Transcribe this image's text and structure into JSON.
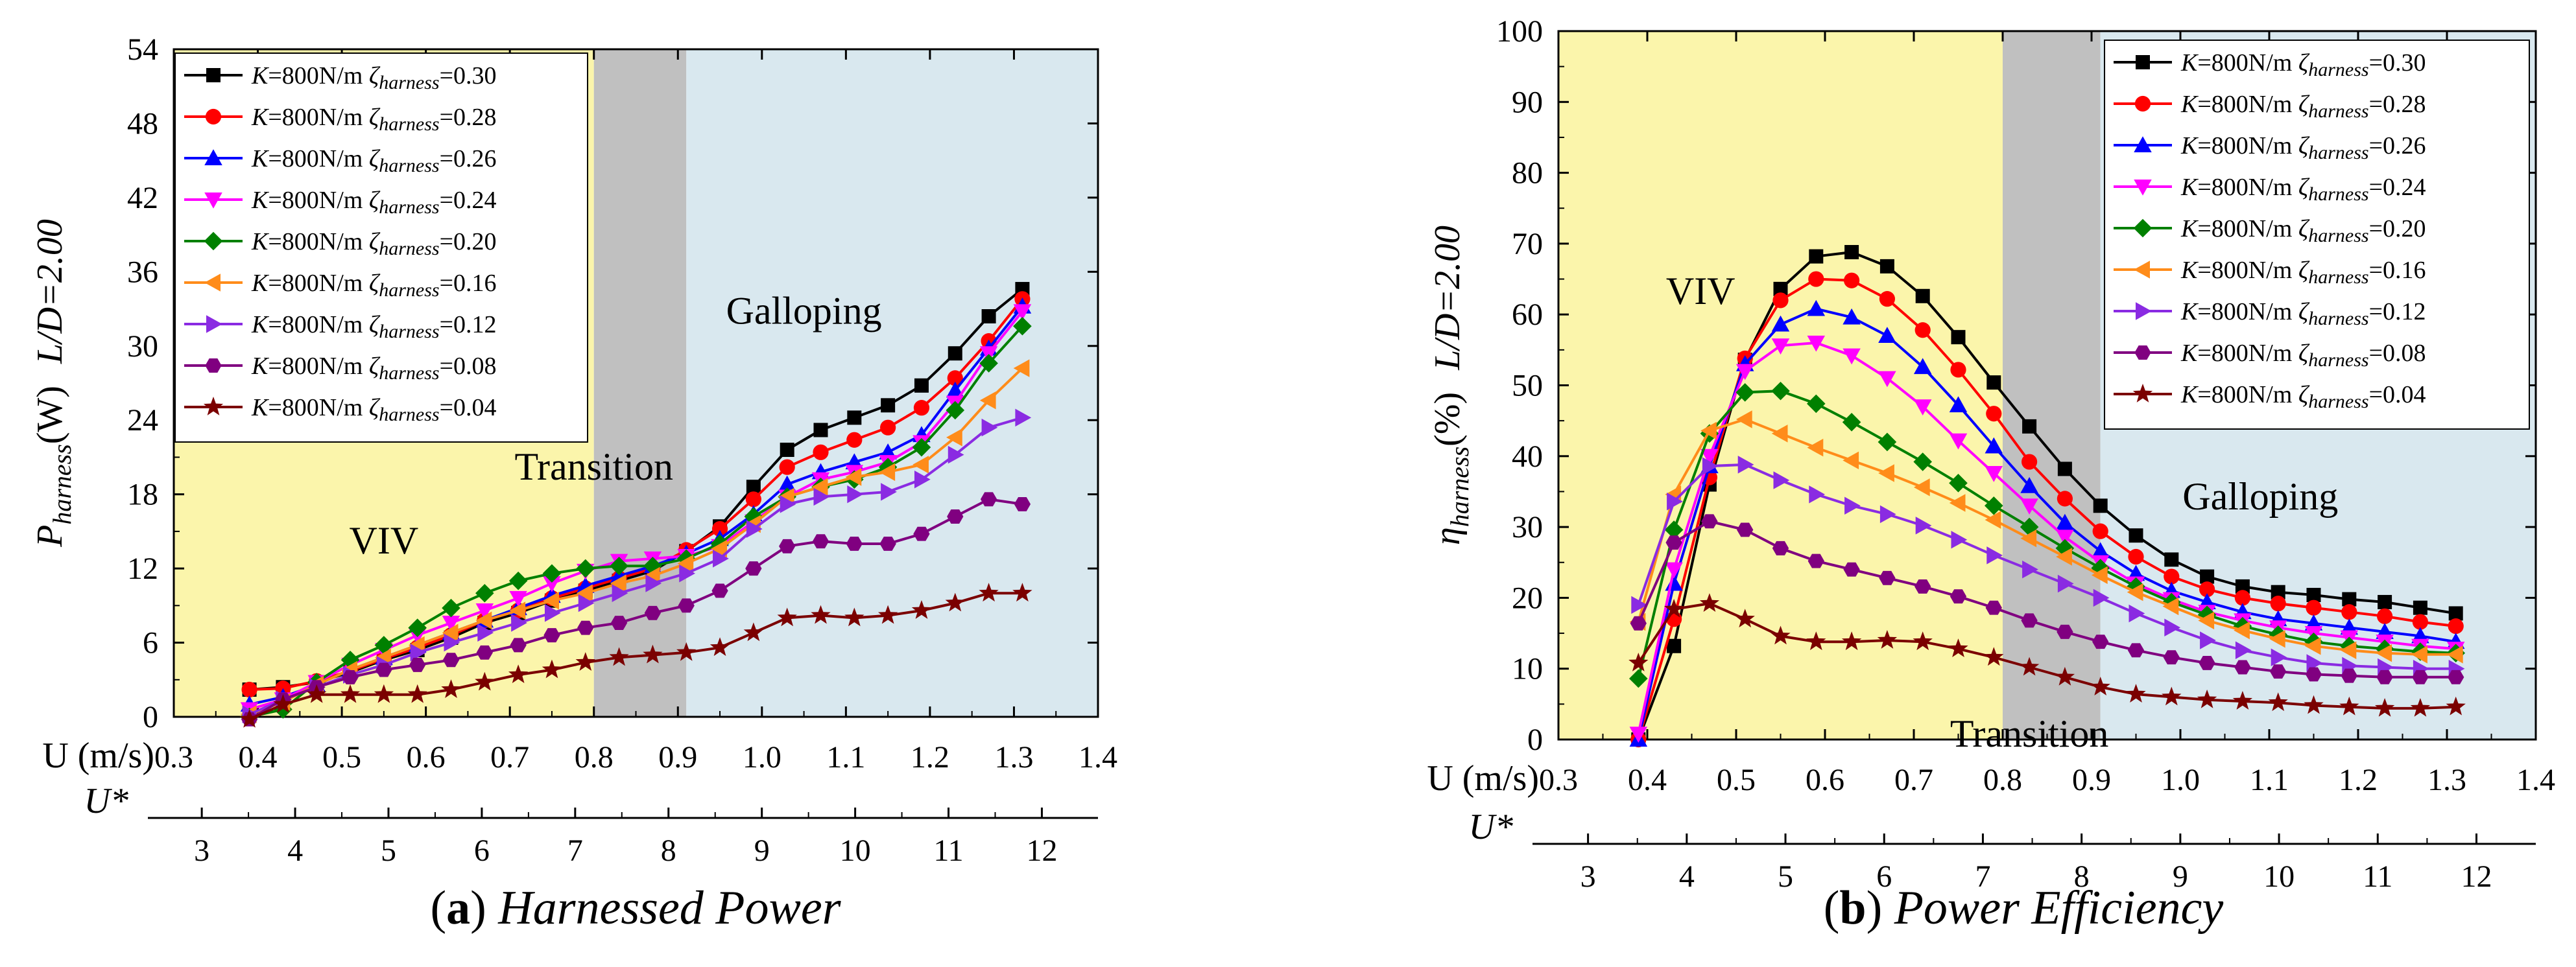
{
  "chart_data": [
    {
      "type": "line",
      "id": "a",
      "caption": {
        "letter": "(a)",
        "title": "Harnessed Power"
      },
      "ylabel": "P_harness(W)",
      "ylabel_main": "P",
      "ylabel_sub": "harness",
      "ylabel_unit": "(W)",
      "ylabel_right": "L/D=2.00",
      "xlabel": "U (m/s)",
      "x2label": "U*",
      "xlim": [
        0.3,
        1.4
      ],
      "ylim": [
        0,
        54
      ],
      "xticks": [
        0.3,
        0.4,
        0.5,
        0.6,
        0.7,
        0.8,
        0.9,
        1.0,
        1.1,
        1.2,
        1.3,
        1.4
      ],
      "xtick_labels": [
        "0.3",
        "0.4",
        "0.5",
        "0.6",
        "0.7",
        "0.8",
        "0.9",
        "1.0",
        "1.1",
        "1.2",
        "1.3",
        "1.4"
      ],
      "yticks": [
        0,
        6,
        12,
        18,
        24,
        30,
        36,
        42,
        48,
        54
      ],
      "ytick_labels": [
        "0",
        "6",
        "12",
        "18",
        "24",
        "30",
        "36",
        "42",
        "48",
        "54"
      ],
      "x2ticks": [
        3,
        4,
        5,
        6,
        7,
        8,
        9,
        10,
        11,
        12
      ],
      "x2tick_labels": [
        "3",
        "4",
        "5",
        "6",
        "7",
        "8",
        "9",
        "10",
        "11",
        "12"
      ],
      "x2_scale": 0.1111,
      "regions": [
        {
          "name": "VIV",
          "x0": 0.3,
          "x1": 0.8,
          "color": "#fbf5ab"
        },
        {
          "name": "Transition",
          "x0": 0.8,
          "x1": 0.91,
          "color": "#c0c0c0"
        },
        {
          "name": "Galloping",
          "x0": 0.91,
          "x1": 1.4,
          "color": "#d9e8ef"
        }
      ],
      "region_labels": [
        {
          "text": "VIV",
          "x": 0.55,
          "y": 13.2
        },
        {
          "text": "Transition",
          "x": 0.8,
          "y": 19.2
        },
        {
          "text": "Galloping",
          "x": 1.05,
          "y": 31.8
        }
      ],
      "legend_position": "top-left",
      "x": [
        0.39,
        0.43,
        0.47,
        0.51,
        0.55,
        0.59,
        0.63,
        0.67,
        0.71,
        0.75,
        0.79,
        0.83,
        0.87,
        0.91,
        0.95,
        0.99,
        1.03,
        1.07,
        1.11,
        1.15,
        1.19,
        1.23,
        1.27,
        1.31
      ],
      "series": [
        {
          "name": "K=800N/m  ζharness=0.30",
          "k_text": "K",
          "rest": "=800N/m  ",
          "zeta_sub": "harness",
          "value_text": "=0.30",
          "color": "#000000",
          "marker": "square",
          "values": [
            2.2,
            2.4,
            2.8,
            3.6,
            4.6,
            5.4,
            6.4,
            7.6,
            8.4,
            9.4,
            10.2,
            11.0,
            11.8,
            13.4,
            15.4,
            18.6,
            21.6,
            23.2,
            24.2,
            25.2,
            26.8,
            29.4,
            32.4,
            34.6
          ]
        },
        {
          "name": "K=800N/m  ζharness=0.28",
          "k_text": "K",
          "rest": "=800N/m  ",
          "zeta_sub": "harness",
          "value_text": "=0.28",
          "color": "#ff0000",
          "marker": "circle",
          "values": [
            2.2,
            2.3,
            2.9,
            3.7,
            4.7,
            5.6,
            6.6,
            7.8,
            8.6,
            9.6,
            10.4,
            11.2,
            12.0,
            13.5,
            15.2,
            17.6,
            20.2,
            21.4,
            22.4,
            23.4,
            25.0,
            27.4,
            30.4,
            33.8
          ]
        },
        {
          "name": "K=800N/m  ζharness=0.26",
          "k_text": "K",
          "rest": "=800N/m  ",
          "zeta_sub": "harness",
          "value_text": "=0.26",
          "color": "#0000ff",
          "marker": "triangle-up",
          "values": [
            1.0,
            1.6,
            2.6,
            3.8,
            4.8,
            5.8,
            6.8,
            7.8,
            8.8,
            9.8,
            10.6,
            11.4,
            12.2,
            13.2,
            14.4,
            16.4,
            18.8,
            19.8,
            20.6,
            21.4,
            22.8,
            26.4,
            29.8,
            33.2
          ]
        },
        {
          "name": "K=800N/m  ζharness=0.24",
          "k_text": "K",
          "rest": "=800N/m  ",
          "zeta_sub": "harness",
          "value_text": "=0.24",
          "color": "#ff00ff",
          "marker": "triangle-down",
          "values": [
            0.6,
            1.4,
            2.8,
            4.2,
            5.4,
            6.6,
            7.6,
            8.6,
            9.6,
            10.8,
            11.8,
            12.6,
            12.8,
            13.0,
            13.8,
            15.8,
            17.8,
            19.2,
            19.8,
            20.6,
            22.2,
            25.4,
            29.4,
            32.8
          ]
        },
        {
          "name": "K=800N/m  ζharness=0.20",
          "k_text": "K",
          "rest": "=800N/m  ",
          "zeta_sub": "harness",
          "value_text": "=0.20",
          "color": "#008000",
          "marker": "diamond",
          "values": [
            0.0,
            0.6,
            2.8,
            4.6,
            5.8,
            7.2,
            8.8,
            10.0,
            11.0,
            11.6,
            12.0,
            12.2,
            12.2,
            12.8,
            14.0,
            16.2,
            17.8,
            18.6,
            19.2,
            20.2,
            21.8,
            24.8,
            28.6,
            31.6
          ]
        },
        {
          "name": "K=800N/m  ζharness=0.16",
          "k_text": "K",
          "rest": "=800N/m  ",
          "zeta_sub": "harness",
          "value_text": "=0.16",
          "color": "#ff8c1a",
          "marker": "triangle-left",
          "values": [
            0.2,
            1.2,
            2.6,
            3.8,
            4.8,
            5.8,
            6.8,
            7.8,
            8.6,
            9.4,
            10.0,
            10.8,
            11.4,
            12.4,
            13.6,
            15.6,
            17.8,
            18.6,
            19.4,
            19.8,
            20.4,
            22.6,
            25.6,
            28.2
          ]
        },
        {
          "name": "K=800N/m  ζharness=0.12",
          "k_text": "K",
          "rest": "=800N/m  ",
          "zeta_sub": "harness",
          "value_text": "=0.12",
          "color": "#8a2be2",
          "marker": "triangle-right",
          "values": [
            0.2,
            1.4,
            2.4,
            3.4,
            4.2,
            5.2,
            6.0,
            6.8,
            7.6,
            8.4,
            9.2,
            10.0,
            10.8,
            11.6,
            12.8,
            15.2,
            17.2,
            17.8,
            18.0,
            18.2,
            19.2,
            21.2,
            23.4,
            24.2
          ]
        },
        {
          "name": "K=800N/m  ζharness=0.08",
          "k_text": "K",
          "rest": "=800N/m  ",
          "zeta_sub": "harness",
          "value_text": "=0.08",
          "color": "#800080",
          "marker": "hexagon",
          "values": [
            -0.2,
            1.4,
            2.4,
            3.2,
            3.8,
            4.2,
            4.6,
            5.2,
            5.8,
            6.6,
            7.2,
            7.6,
            8.4,
            9.0,
            10.2,
            12.0,
            13.8,
            14.2,
            14.0,
            14.0,
            14.8,
            16.2,
            17.6,
            17.2
          ]
        },
        {
          "name": "K=800N/m  ζharness=0.04",
          "k_text": "K",
          "rest": "=800N/m  ",
          "zeta_sub": "harness",
          "value_text": "=0.04",
          "color": "#7b0000",
          "marker": "star",
          "values": [
            -0.2,
            1.0,
            1.8,
            1.8,
            1.8,
            1.8,
            2.2,
            2.8,
            3.4,
            3.8,
            4.4,
            4.8,
            5.0,
            5.2,
            5.6,
            6.8,
            8.0,
            8.2,
            8.0,
            8.2,
            8.6,
            9.2,
            10.0,
            10.0
          ]
        }
      ]
    },
    {
      "type": "line",
      "id": "b",
      "caption": {
        "letter": "(b)",
        "title": "Power Efficiency"
      },
      "ylabel": "η_harness(%)",
      "ylabel_main": "η",
      "ylabel_sub": "harness",
      "ylabel_unit": "(%)",
      "ylabel_right": "L/D=2.00",
      "xlabel": "U (m/s)",
      "x2label": "U*",
      "xlim": [
        0.3,
        1.4
      ],
      "ylim": [
        0,
        100
      ],
      "xticks": [
        0.3,
        0.4,
        0.5,
        0.6,
        0.7,
        0.8,
        0.9,
        1.0,
        1.1,
        1.2,
        1.3,
        1.4
      ],
      "xtick_labels": [
        "0.3",
        "0.4",
        "0.5",
        "0.6",
        "0.7",
        "0.8",
        "0.9",
        "1.0",
        "1.1",
        "1.2",
        "1.3",
        "1.4"
      ],
      "yticks": [
        0,
        10,
        20,
        30,
        40,
        50,
        60,
        70,
        80,
        90,
        100
      ],
      "ytick_labels": [
        "0",
        "10",
        "20",
        "30",
        "40",
        "50",
        "60",
        "70",
        "80",
        "90",
        "100"
      ],
      "x2ticks": [
        3,
        4,
        5,
        6,
        7,
        8,
        9,
        10,
        11,
        12
      ],
      "x2tick_labels": [
        "3",
        "4",
        "5",
        "6",
        "7",
        "8",
        "9",
        "10",
        "11",
        "12"
      ],
      "x2_scale": 0.1111,
      "regions": [
        {
          "name": "VIV",
          "x0": 0.3,
          "x1": 0.8,
          "color": "#fbf5ab"
        },
        {
          "name": "Transition",
          "x0": 0.8,
          "x1": 0.91,
          "color": "#c0c0c0"
        },
        {
          "name": "Galloping",
          "x0": 0.91,
          "x1": 1.4,
          "color": "#d9e8ef"
        }
      ],
      "region_labels": [
        {
          "text": "VIV",
          "x": 0.46,
          "y": 61.5
        },
        {
          "text": "Transition",
          "x": 0.83,
          "y": -1.0
        },
        {
          "text": "Galloping",
          "x": 1.09,
          "y": 32.5
        }
      ],
      "legend_position": "top-right",
      "x": [
        0.39,
        0.43,
        0.47,
        0.51,
        0.55,
        0.59,
        0.63,
        0.67,
        0.71,
        0.75,
        0.79,
        0.83,
        0.87,
        0.91,
        0.95,
        0.99,
        1.03,
        1.07,
        1.11,
        1.15,
        1.19,
        1.23,
        1.27,
        1.31
      ],
      "series": [
        {
          "name": "K=800N/m  ζharness=0.30",
          "k_text": "K",
          "rest": "=800N/m  ",
          "zeta_sub": "harness",
          "value_text": "=0.30",
          "color": "#000000",
          "marker": "square",
          "values": [
            0.0,
            13.2,
            36.0,
            53.6,
            63.6,
            68.2,
            68.8,
            66.8,
            62.6,
            56.8,
            50.4,
            44.2,
            38.2,
            33.0,
            28.8,
            25.4,
            23.0,
            21.6,
            20.8,
            20.4,
            19.8,
            19.4,
            18.6,
            17.8
          ]
        },
        {
          "name": "K=800N/m  ζharness=0.28",
          "k_text": "K",
          "rest": "=800N/m  ",
          "zeta_sub": "harness",
          "value_text": "=0.28",
          "color": "#ff0000",
          "marker": "circle",
          "values": [
            0.0,
            17.0,
            37.0,
            53.8,
            62.0,
            65.0,
            64.8,
            62.2,
            57.8,
            52.2,
            46.0,
            39.2,
            34.0,
            29.4,
            25.8,
            23.0,
            21.2,
            20.0,
            19.2,
            18.6,
            18.0,
            17.4,
            16.6,
            16.0
          ]
        },
        {
          "name": "K=800N/m  ζharness=0.26",
          "k_text": "K",
          "rest": "=800N/m  ",
          "zeta_sub": "harness",
          "value_text": "=0.26",
          "color": "#0000ff",
          "marker": "triangle-up",
          "values": [
            0.0,
            22.0,
            38.6,
            53.0,
            58.6,
            60.8,
            59.6,
            57.0,
            52.6,
            47.2,
            41.4,
            35.8,
            30.6,
            26.6,
            23.4,
            21.0,
            19.4,
            18.0,
            17.0,
            16.4,
            15.8,
            15.2,
            14.6,
            13.8
          ]
        },
        {
          "name": "K=800N/m  ζharness=0.24",
          "k_text": "K",
          "rest": "=800N/m  ",
          "zeta_sub": "harness",
          "value_text": "=0.24",
          "color": "#ff00ff",
          "marker": "triangle-down",
          "values": [
            0.8,
            24.0,
            40.0,
            52.0,
            55.6,
            56.0,
            54.2,
            51.0,
            47.0,
            42.2,
            37.6,
            33.0,
            28.6,
            25.0,
            22.0,
            19.8,
            18.0,
            16.8,
            15.8,
            15.0,
            14.4,
            13.8,
            13.2,
            12.8
          ]
        },
        {
          "name": "K=800N/m  ζharness=0.20",
          "k_text": "K",
          "rest": "=800N/m  ",
          "zeta_sub": "harness",
          "value_text": "=0.20",
          "color": "#008000",
          "marker": "diamond",
          "values": [
            8.6,
            29.6,
            43.2,
            49.0,
            49.2,
            47.4,
            44.8,
            42.0,
            39.2,
            36.2,
            33.0,
            30.0,
            27.0,
            24.2,
            21.6,
            19.4,
            17.6,
            16.0,
            14.8,
            13.8,
            13.2,
            12.8,
            12.4,
            12.2
          ]
        },
        {
          "name": "K=800N/m  ζharness=0.16",
          "k_text": "K",
          "rest": "=800N/m  ",
          "zeta_sub": "harness",
          "value_text": "=0.16",
          "color": "#ff8c1a",
          "marker": "triangle-left",
          "values": [
            16.6,
            34.6,
            43.6,
            45.2,
            43.2,
            41.2,
            39.4,
            37.6,
            35.6,
            33.4,
            31.0,
            28.4,
            25.8,
            23.2,
            20.8,
            18.8,
            16.8,
            15.4,
            14.2,
            13.2,
            12.6,
            12.2,
            12.0,
            12.0
          ]
        },
        {
          "name": "K=800N/m  ζharness=0.12",
          "k_text": "K",
          "rest": "=800N/m  ",
          "zeta_sub": "harness",
          "value_text": "=0.12",
          "color": "#8a2be2",
          "marker": "triangle-right",
          "values": [
            19.0,
            33.6,
            38.6,
            38.8,
            36.6,
            34.6,
            33.0,
            31.8,
            30.2,
            28.2,
            26.0,
            24.0,
            22.0,
            20.0,
            17.8,
            15.8,
            14.0,
            12.6,
            11.6,
            10.8,
            10.4,
            10.2,
            10.0,
            10.0
          ]
        },
        {
          "name": "K=800N/m  ζharness=0.08",
          "k_text": "K",
          "rest": "=800N/m  ",
          "zeta_sub": "harness",
          "value_text": "=0.08",
          "color": "#800080",
          "marker": "hexagon",
          "values": [
            16.4,
            27.8,
            30.8,
            29.6,
            27.0,
            25.2,
            24.0,
            22.8,
            21.6,
            20.2,
            18.6,
            16.8,
            15.2,
            13.8,
            12.6,
            11.6,
            10.8,
            10.2,
            9.6,
            9.2,
            9.0,
            8.8,
            8.8,
            8.8
          ]
        },
        {
          "name": "K=800N/m  ζharness=0.04",
          "k_text": "K",
          "rest": "=800N/m  ",
          "zeta_sub": "harness",
          "value_text": "=0.04",
          "color": "#7b0000",
          "marker": "star",
          "values": [
            10.8,
            18.4,
            19.2,
            17.0,
            14.6,
            13.8,
            13.8,
            14.0,
            13.8,
            12.8,
            11.6,
            10.2,
            8.8,
            7.4,
            6.4,
            6.0,
            5.6,
            5.4,
            5.2,
            4.8,
            4.6,
            4.4,
            4.4,
            4.6
          ]
        }
      ]
    }
  ]
}
